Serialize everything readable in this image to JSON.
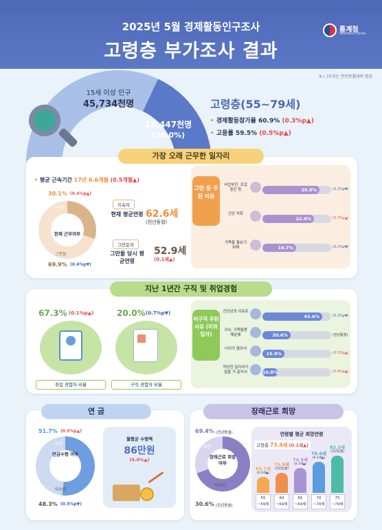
{
  "header": {
    "subtitle": "2025년 5월 경제활동인구조사",
    "title": "고령층 부가조사 결과",
    "org": "통계청",
    "org_en": "Statistics Korea"
  },
  "note": "※ ( )수치는 전년동월대비 증감",
  "population": {
    "label": "15세 이상 인구",
    "value": "45,734천명",
    "elderly_value": "16,447천명",
    "elderly_share": "(36.0%)"
  },
  "elderly": {
    "title": "고령층(55~79세)",
    "participation_label": "경제활동참가율",
    "participation_value": "60.9%",
    "participation_change": "(0.3%p▲)",
    "employment_label": "고용률",
    "employment_value": "59.5%",
    "employment_change": "(0.5%p▲)"
  },
  "longest_job": {
    "title": "가장 오래 근무한 일자리",
    "tenure_label": "평균 근속기간",
    "tenure_value": "17년 6.6개월",
    "tenure_change": "(0.5개월▲)",
    "donut_top_pct": "30.1%",
    "donut_top_change": "(0.4%p▲)",
    "donut_top_label": "지속",
    "donut_center": "현재 근무여부",
    "donut_bottom_label": "그만둠",
    "donut_bottom_pct": "69.9%",
    "donut_bottom_change": "(0.4%p▼)",
    "cont_tag": "지속자",
    "cont_label": "현재 평균연령",
    "cont_age": "62.6세",
    "cont_change": "(전년동월)",
    "quit_tag": "그만둔자",
    "quit_label": "그만둘 당시 평균연령",
    "quit_age": "52.9세",
    "quit_change": "(0.1세▲)",
    "reason_title": "그만 둔 주된 이유",
    "reasons": [
      {
        "label": "사업부진, 조업중단 등",
        "pct": 25.0,
        "pct_text": "25.0%",
        "change": "(0.1%p▼)"
      },
      {
        "label": "건강 악화",
        "pct": 22.4,
        "pct_text": "22.4%",
        "change": "(0.7%p▲)"
      },
      {
        "label": "가족을 돌보기 위해",
        "pct": 14.7,
        "pct_text": "14.7%",
        "change": "(0.2%p▼)"
      }
    ]
  },
  "job_search": {
    "title": "지난 1년간 구직 및 취업경험",
    "employ_pct": "67.3%",
    "employ_change": "(0.1%p▲)",
    "employ_label": "취업 경험자 비율",
    "search_pct": "20.0%",
    "search_change": "(0.7%p▼)",
    "search_label": "구직 경험자 비율",
    "reason_title": "비구직 주된 사유 (미취업자)",
    "reasons": [
      {
        "label": "건강상의 이유로",
        "pct": 43.6,
        "pct_text": "43.6%",
        "change": "(0.1%p▼)"
      },
      {
        "label": "가사, 가족돌봄 때문에",
        "pct": 20.6,
        "pct_text": "20.6%",
        "change": "(전년동월)"
      },
      {
        "label": "나이가 많아서",
        "pct": 15.9,
        "pct_text": "15.9%",
        "change": "(0.5%p▲)"
      },
      {
        "label": "적당한 일자리가 없을 거 같아서",
        "pct": 10.8,
        "pct_text": "10.8%",
        "change": "(0.4%p▲)"
      }
    ]
  },
  "pension": {
    "title": "연 금",
    "recv_pct": "51.7%",
    "recv_change": "(0.5%p▲)",
    "recv_label": "수령",
    "center": "연금수령 여부",
    "not_label": "미수령",
    "not_pct": "48.3%",
    "not_change": "(0.5%p▼)",
    "avg_label": "월평균 수령액",
    "avg_value": "86만원",
    "avg_change": "(5.0%▲)"
  },
  "future_work": {
    "title": "장래근로 희망",
    "want_pct": "69.4%",
    "want_change": "(전년동월)",
    "want_label": "희망",
    "center": "장래근로 희망여부",
    "not_label": "비희망",
    "not_pct": "30.6%",
    "not_change": "(전년동월)",
    "age_title": "연령별 평균 희망연령",
    "overall_label": "고령층",
    "overall_value": "73.4세",
    "overall_change": "(0.1세▲)",
    "groups": [
      {
        "label": "55 ~59세",
        "age": 69.7,
        "age_text": "69.7세",
        "change": "(0.1세▲)"
      },
      {
        "label": "60 ~64세",
        "age": 71.9,
        "age_text": "71.9세",
        "change": "(전년동월)"
      },
      {
        "label": "65 ~69세",
        "age": 74.9,
        "age_text": "74.9세",
        "change": "(0.1세▲)"
      },
      {
        "label": "70 ~74세",
        "age": 78.6,
        "age_text": "78.6세",
        "change": "(0.1세▲)"
      },
      {
        "label": "75 ~79세",
        "age": 82.3,
        "age_text": "82.3세",
        "change": "(전년동월)"
      }
    ]
  },
  "colors": {
    "header": "#5670bf",
    "orange": "#f08c3c",
    "green": "#8fc95a",
    "purple": "#8b7fc4",
    "blue": "#4f8fd8",
    "teal": "#44b7a3"
  }
}
